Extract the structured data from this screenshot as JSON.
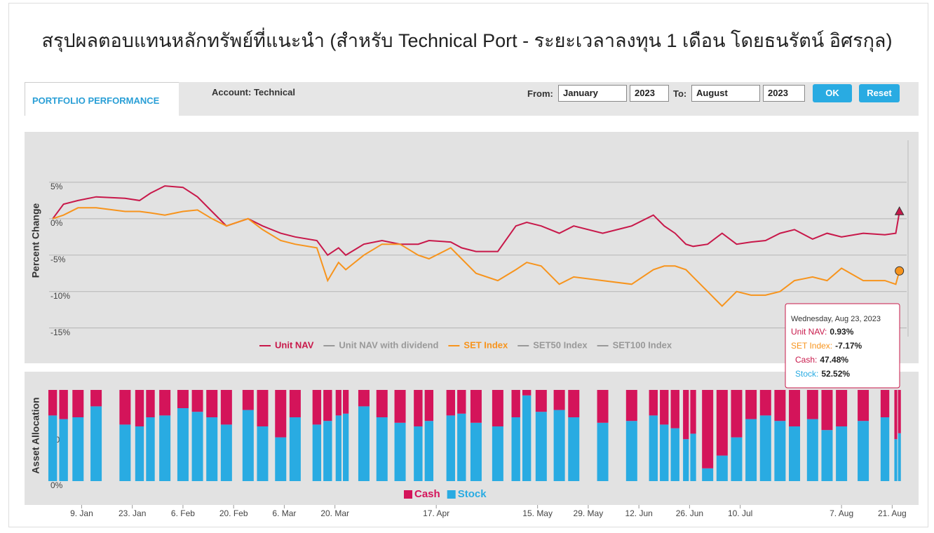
{
  "title": "สรุปผลตอบแทนหลักทรัพย์ที่แนะนำ (สำหรับ Technical Port - ระยะเวลาลงทุน 1 เดือน โดยธนรัตน์ อิศรกุล)",
  "toolbar": {
    "tab": "PORTFOLIO PERFORMANCE",
    "account": "Account: Technical",
    "from_label": "From:",
    "from_month": "January",
    "from_year": "2023",
    "to_label": "To:",
    "to_month": "August",
    "to_year": "2023",
    "ok": "OK",
    "reset": "Reset"
  },
  "chart_data": [
    {
      "type": "line",
      "y_label": "Percent Change",
      "x": [
        1,
        4,
        8,
        13,
        21,
        25,
        28,
        32,
        37,
        41,
        45,
        49,
        55,
        59,
        64,
        68,
        74,
        77,
        80,
        82,
        87,
        92,
        97,
        102,
        105,
        111,
        114,
        118,
        124,
        129,
        132,
        136,
        141,
        145,
        153,
        161,
        167,
        170,
        173,
        176,
        178,
        182,
        186,
        190,
        194,
        198,
        202,
        206,
        211,
        215,
        219,
        225,
        231,
        234,
        235
      ],
      "xlim": [
        0,
        237
      ],
      "ylim": [
        -16,
        10
      ],
      "yticks": [
        {
          "value": 5,
          "label": "5%"
        },
        {
          "value": 0,
          "label": "0%"
        },
        {
          "value": -5,
          "label": "-5%"
        },
        {
          "value": -10,
          "label": "-10%"
        },
        {
          "value": -15,
          "label": "-15%"
        }
      ],
      "grid": true,
      "series": [
        {
          "name": "Unit NAV",
          "color": "#c8184a",
          "marker": "triangle",
          "values": [
            0,
            2,
            2.5,
            3,
            2.8,
            2.5,
            3.5,
            4.5,
            4.3,
            3,
            1,
            -1,
            0,
            -1,
            -2,
            -2.5,
            -3,
            -5,
            -4,
            -5,
            -3.5,
            -3,
            -3.5,
            -3.5,
            -3,
            -3.2,
            -4,
            -4.5,
            -4.5,
            -1,
            -0.5,
            -1,
            -2,
            -1,
            -2,
            -1,
            0.5,
            -1,
            -2,
            -3.5,
            -3.8,
            -3.5,
            -2,
            -3.5,
            -3.2,
            -3,
            -2,
            -1.5,
            -2.8,
            -2,
            -2.5,
            -2,
            -2.2,
            -2,
            0.93
          ]
        },
        {
          "name": "Unit NAV with dividend",
          "color": "#999999",
          "hidden": true
        },
        {
          "name": "SET Index",
          "color": "#f7941d",
          "marker": "circle",
          "values": [
            0,
            0.5,
            1.5,
            1.5,
            1,
            1,
            0.8,
            0.5,
            1,
            1.2,
            0,
            -1,
            0,
            -1.5,
            -3,
            -3.5,
            -4,
            -8.5,
            -6,
            -7,
            -5,
            -3.5,
            -3.5,
            -5,
            -5.5,
            -4,
            -5.5,
            -7.5,
            -8.5,
            -7,
            -6,
            -6.5,
            -9,
            -8,
            -8.5,
            -9,
            -7,
            -6.5,
            -6.5,
            -7,
            -8,
            -10,
            -12,
            -10,
            -10.5,
            -10.5,
            -10,
            -8.5,
            -8,
            -8.5,
            -6.8,
            -8.5,
            -8.5,
            -9,
            -7.17
          ]
        },
        {
          "name": "SET50 Index",
          "color": "#999999",
          "hidden": true
        },
        {
          "name": "SET100 Index",
          "color": "#999999",
          "hidden": true
        }
      ]
    },
    {
      "type": "stacked_bar",
      "y_label": "Asset Allocation",
      "x": [
        1,
        4,
        8,
        13,
        21,
        25,
        28,
        32,
        37,
        41,
        45,
        49,
        55,
        59,
        64,
        68,
        74,
        77,
        80,
        82,
        87,
        92,
        97,
        102,
        105,
        111,
        114,
        118,
        124,
        129,
        132,
        136,
        141,
        145,
        153,
        161,
        167,
        170,
        173,
        176,
        178,
        182,
        186,
        190,
        194,
        198,
        202,
        206,
        211,
        215,
        219,
        225,
        231,
        234,
        235
      ],
      "xlim": [
        0,
        237
      ],
      "ylim": [
        0,
        100
      ],
      "yticks": [
        {
          "value": 50,
          "label": "50%"
        },
        {
          "value": 0,
          "label": "0%"
        }
      ],
      "xticks": [
        {
          "value": 9,
          "label": "9. Jan"
        },
        {
          "value": 23,
          "label": "23. Jan"
        },
        {
          "value": 37,
          "label": "6. Feb"
        },
        {
          "value": 51,
          "label": "20. Feb"
        },
        {
          "value": 65,
          "label": "6. Mar"
        },
        {
          "value": 79,
          "label": "20. Mar"
        },
        {
          "value": 107,
          "label": "17. Apr"
        },
        {
          "value": 135,
          "label": "15. May"
        },
        {
          "value": 149,
          "label": "29. May"
        },
        {
          "value": 163,
          "label": "12. Jun"
        },
        {
          "value": 177,
          "label": "26. Jun"
        },
        {
          "value": 191,
          "label": "10. Jul"
        },
        {
          "value": 219,
          "label": "7. Aug"
        },
        {
          "value": 233,
          "label": "21. Aug"
        }
      ],
      "series": [
        {
          "name": "Cash",
          "color": "#d4145a",
          "values": [
            28,
            32,
            30,
            18,
            38,
            40,
            30,
            28,
            20,
            24,
            30,
            38,
            22,
            40,
            52,
            30,
            38,
            34,
            28,
            26,
            18,
            30,
            36,
            40,
            34,
            28,
            26,
            36,
            40,
            30,
            6,
            24,
            22,
            30,
            36,
            34,
            28,
            38,
            42,
            54,
            48,
            86,
            72,
            52,
            32,
            28,
            34,
            40,
            32,
            44,
            40,
            34,
            30,
            54,
            47.48
          ]
        },
        {
          "name": "Stock",
          "color": "#29abe2",
          "values": [
            72,
            68,
            70,
            82,
            62,
            60,
            70,
            72,
            80,
            76,
            70,
            62,
            78,
            60,
            48,
            70,
            62,
            66,
            72,
            74,
            82,
            70,
            64,
            60,
            66,
            72,
            74,
            64,
            60,
            70,
            94,
            76,
            78,
            70,
            64,
            66,
            72,
            62,
            58,
            46,
            52,
            14,
            28,
            48,
            68,
            72,
            66,
            60,
            68,
            56,
            60,
            66,
            70,
            46,
            52.52
          ]
        }
      ]
    }
  ],
  "tooltip": {
    "date": "Wednesday, Aug 23, 2023",
    "items": [
      {
        "label": "Unit NAV:",
        "value": "0.93%",
        "color": "#c8184a"
      },
      {
        "label": "SET Index:",
        "value": "-7.17%",
        "color": "#f7941d"
      },
      {
        "label": "Cash:",
        "value": "47.48%",
        "color": "#c8184a"
      },
      {
        "label": "Stock:",
        "value": "52.52%",
        "color": "#29abe2"
      }
    ]
  }
}
